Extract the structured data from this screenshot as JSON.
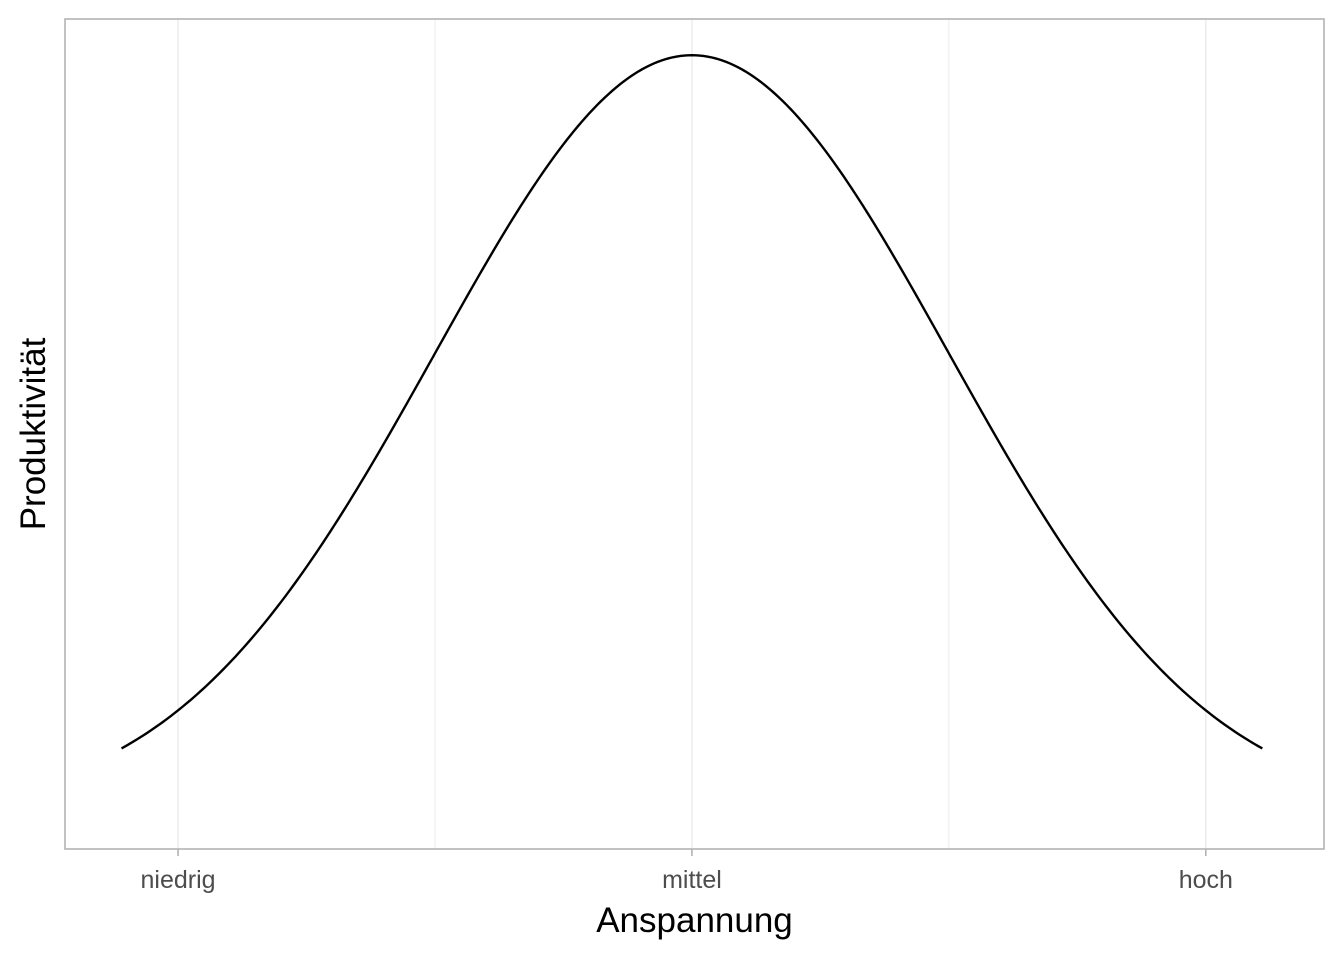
{
  "chart_data": {
    "type": "line",
    "title": "",
    "xlabel": "Anspannung",
    "ylabel": "Produktivität",
    "xlim": [
      -2.22,
      2.68
    ],
    "ylim": [
      -0.019,
      0.418
    ],
    "x_ticks": [
      {
        "value": -1.78,
        "label": "niedrig"
      },
      {
        "value": 0.22,
        "label": "mittel"
      },
      {
        "value": 2.22,
        "label": "hoch"
      }
    ],
    "y_ticks_shown": false,
    "grid": true,
    "series": [
      {
        "curve": "normal-density",
        "mean": 0.22,
        "sd": 1,
        "x_from": -2.0,
        "x_to": 2.44,
        "color": "#000000"
      }
    ],
    "colors": {
      "background": "#ffffff",
      "panel_border": "#b3b3b3",
      "grid": "#ebebeb",
      "line": "#000000",
      "tick_text": "#4d4d4d",
      "title_text": "#000000"
    }
  }
}
